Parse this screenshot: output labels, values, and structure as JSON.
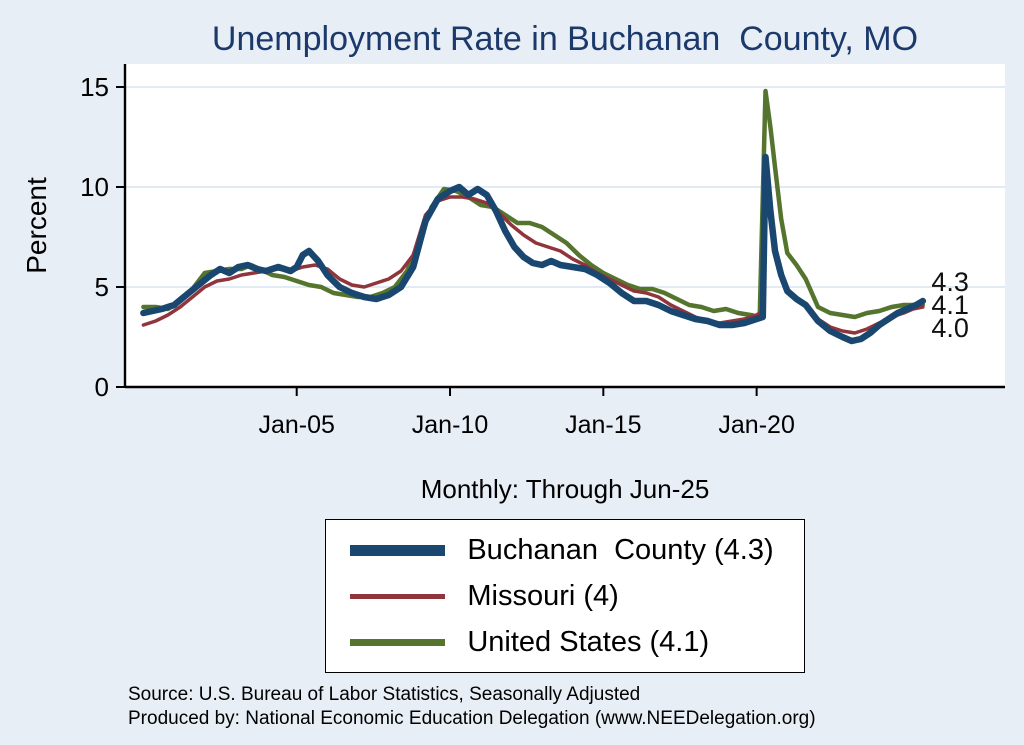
{
  "title": "Unemployment Rate in Buchanan  County, MO",
  "subtitle": "Monthly: Through Jun-25",
  "notes": {
    "line1": "Source: U.S. Bureau of Labor Statistics, Seasonally Adjusted",
    "line2": "Produced by: National Economic Education Delegation (www.NEEDelegation.org)"
  },
  "colors": {
    "background": "#e8eef6",
    "plot_bg": "#ffffff",
    "title": "#1b3a6b",
    "axis": "#000000",
    "grid": "#d9e4f0",
    "text": "#000000",
    "navy": "#1a476f",
    "maroon": "#90353b",
    "forest_green": "#55752f"
  },
  "legend": {
    "items": [
      {
        "label": "Buchanan  County (4.3)",
        "color": "#1a476f",
        "height": 11
      },
      {
        "label": "Missouri (4)",
        "color": "#90353b",
        "height": 5
      },
      {
        "label": "United States (4.1)",
        "color": "#55752f",
        "height": 7
      }
    ]
  },
  "chart_data": {
    "type": "line",
    "title": "Unemployment Rate in Buchanan  County, MO",
    "subtitle": "Monthly: Through Jun-25",
    "xlabel": "",
    "ylabel": "Percent",
    "grid": true,
    "legend_position": "bottom-center",
    "xlim": [
      1999.4,
      2028.1
    ],
    "ylim": [
      0,
      16
    ],
    "yticks": [
      0,
      5,
      10,
      15
    ],
    "xticks": [
      {
        "value": 2005,
        "label": "Jan-05"
      },
      {
        "value": 2010,
        "label": "Jan-10"
      },
      {
        "value": 2015,
        "label": "Jan-15"
      },
      {
        "value": 2020,
        "label": "Jan-20"
      }
    ],
    "end_label_x": 2025.7,
    "draw_order": [
      2,
      1,
      0
    ],
    "series": [
      {
        "id": "buchanan-county",
        "name": "Buchanan County",
        "color": "#1a476f",
        "width": 6.5,
        "end_label": "4.3",
        "end_label_y": 5.25,
        "points": [
          [
            2000.0,
            3.7
          ],
          [
            2000.3,
            3.8
          ],
          [
            2000.6,
            3.9
          ],
          [
            2001.0,
            4.1
          ],
          [
            2001.4,
            4.6
          ],
          [
            2001.8,
            5.1
          ],
          [
            2002.2,
            5.6
          ],
          [
            2002.5,
            5.9
          ],
          [
            2002.8,
            5.7
          ],
          [
            2003.1,
            6.0
          ],
          [
            2003.4,
            6.1
          ],
          [
            2003.7,
            5.9
          ],
          [
            2004.0,
            5.8
          ],
          [
            2004.4,
            6.0
          ],
          [
            2004.8,
            5.8
          ],
          [
            2005.0,
            6.0
          ],
          [
            2005.2,
            6.6
          ],
          [
            2005.4,
            6.8
          ],
          [
            2005.7,
            6.3
          ],
          [
            2006.0,
            5.6
          ],
          [
            2006.4,
            5.0
          ],
          [
            2006.8,
            4.7
          ],
          [
            2007.2,
            4.5
          ],
          [
            2007.6,
            4.4
          ],
          [
            2008.0,
            4.6
          ],
          [
            2008.4,
            5.0
          ],
          [
            2008.8,
            6.0
          ],
          [
            2009.2,
            8.3
          ],
          [
            2009.6,
            9.4
          ],
          [
            2010.0,
            9.8
          ],
          [
            2010.3,
            10.0
          ],
          [
            2010.6,
            9.6
          ],
          [
            2010.9,
            9.9
          ],
          [
            2011.2,
            9.6
          ],
          [
            2011.5,
            8.8
          ],
          [
            2011.8,
            7.8
          ],
          [
            2012.1,
            7.0
          ],
          [
            2012.4,
            6.5
          ],
          [
            2012.7,
            6.2
          ],
          [
            2013.0,
            6.1
          ],
          [
            2013.3,
            6.3
          ],
          [
            2013.6,
            6.1
          ],
          [
            2014.0,
            6.0
          ],
          [
            2014.4,
            5.9
          ],
          [
            2014.8,
            5.6
          ],
          [
            2015.2,
            5.2
          ],
          [
            2015.6,
            4.7
          ],
          [
            2016.0,
            4.3
          ],
          [
            2016.4,
            4.3
          ],
          [
            2016.8,
            4.1
          ],
          [
            2017.2,
            3.8
          ],
          [
            2017.6,
            3.6
          ],
          [
            2018.0,
            3.4
          ],
          [
            2018.4,
            3.3
          ],
          [
            2018.8,
            3.1
          ],
          [
            2019.2,
            3.1
          ],
          [
            2019.6,
            3.2
          ],
          [
            2020.0,
            3.4
          ],
          [
            2020.2,
            3.5
          ],
          [
            2020.29,
            11.5
          ],
          [
            2020.45,
            8.8
          ],
          [
            2020.6,
            6.8
          ],
          [
            2020.8,
            5.6
          ],
          [
            2021.0,
            4.8
          ],
          [
            2021.3,
            4.4
          ],
          [
            2021.6,
            4.1
          ],
          [
            2022.0,
            3.3
          ],
          [
            2022.4,
            2.8
          ],
          [
            2022.8,
            2.5
          ],
          [
            2023.1,
            2.3
          ],
          [
            2023.4,
            2.4
          ],
          [
            2023.7,
            2.7
          ],
          [
            2024.0,
            3.1
          ],
          [
            2024.3,
            3.4
          ],
          [
            2024.6,
            3.7
          ],
          [
            2024.9,
            3.9
          ],
          [
            2025.2,
            4.1
          ],
          [
            2025.42,
            4.3
          ]
        ]
      },
      {
        "id": "missouri",
        "name": "Missouri",
        "color": "#90353b",
        "width": 3.5,
        "end_label": "4.0",
        "end_label_y": 2.95,
        "points": [
          [
            2000.0,
            3.1
          ],
          [
            2000.4,
            3.3
          ],
          [
            2000.8,
            3.6
          ],
          [
            2001.2,
            4.0
          ],
          [
            2001.6,
            4.5
          ],
          [
            2002.0,
            5.0
          ],
          [
            2002.4,
            5.3
          ],
          [
            2002.8,
            5.4
          ],
          [
            2003.2,
            5.6
          ],
          [
            2003.6,
            5.7
          ],
          [
            2004.0,
            5.8
          ],
          [
            2004.4,
            5.9
          ],
          [
            2004.8,
            5.8
          ],
          [
            2005.2,
            6.0
          ],
          [
            2005.6,
            6.1
          ],
          [
            2006.0,
            5.9
          ],
          [
            2006.4,
            5.4
          ],
          [
            2006.8,
            5.1
          ],
          [
            2007.2,
            5.0
          ],
          [
            2007.6,
            5.2
          ],
          [
            2008.0,
            5.4
          ],
          [
            2008.4,
            5.8
          ],
          [
            2008.8,
            6.6
          ],
          [
            2009.2,
            8.6
          ],
          [
            2009.6,
            9.3
          ],
          [
            2010.0,
            9.5
          ],
          [
            2010.4,
            9.5
          ],
          [
            2010.8,
            9.4
          ],
          [
            2011.2,
            9.2
          ],
          [
            2011.6,
            8.7
          ],
          [
            2012.0,
            8.1
          ],
          [
            2012.4,
            7.6
          ],
          [
            2012.8,
            7.2
          ],
          [
            2013.2,
            7.0
          ],
          [
            2013.6,
            6.8
          ],
          [
            2014.0,
            6.4
          ],
          [
            2014.4,
            6.1
          ],
          [
            2014.8,
            5.7
          ],
          [
            2015.2,
            5.4
          ],
          [
            2015.6,
            5.1
          ],
          [
            2016.0,
            4.8
          ],
          [
            2016.4,
            4.7
          ],
          [
            2016.8,
            4.5
          ],
          [
            2017.2,
            4.1
          ],
          [
            2017.6,
            3.8
          ],
          [
            2018.0,
            3.5
          ],
          [
            2018.4,
            3.3
          ],
          [
            2018.8,
            3.2
          ],
          [
            2019.2,
            3.3
          ],
          [
            2019.6,
            3.4
          ],
          [
            2020.0,
            3.6
          ],
          [
            2020.2,
            3.8
          ],
          [
            2020.29,
            10.4
          ],
          [
            2020.45,
            8.6
          ],
          [
            2020.6,
            6.9
          ],
          [
            2020.8,
            5.6
          ],
          [
            2021.0,
            4.7
          ],
          [
            2021.3,
            4.4
          ],
          [
            2021.6,
            4.1
          ],
          [
            2022.0,
            3.4
          ],
          [
            2022.4,
            3.0
          ],
          [
            2022.8,
            2.8
          ],
          [
            2023.2,
            2.7
          ],
          [
            2023.6,
            2.9
          ],
          [
            2024.0,
            3.2
          ],
          [
            2024.4,
            3.5
          ],
          [
            2024.8,
            3.7
          ],
          [
            2025.1,
            3.9
          ],
          [
            2025.42,
            4.0
          ]
        ]
      },
      {
        "id": "united-states",
        "name": "United States",
        "color": "#55752f",
        "width": 4.5,
        "end_label": "4.1",
        "end_label_y": 4.1,
        "points": [
          [
            2000.0,
            4.0
          ],
          [
            2000.4,
            4.0
          ],
          [
            2000.8,
            3.9
          ],
          [
            2001.2,
            4.3
          ],
          [
            2001.6,
            4.9
          ],
          [
            2002.0,
            5.7
          ],
          [
            2002.4,
            5.8
          ],
          [
            2002.8,
            5.9
          ],
          [
            2003.2,
            5.9
          ],
          [
            2003.5,
            6.1
          ],
          [
            2003.8,
            5.9
          ],
          [
            2004.2,
            5.6
          ],
          [
            2004.6,
            5.5
          ],
          [
            2005.0,
            5.3
          ],
          [
            2005.4,
            5.1
          ],
          [
            2005.8,
            5.0
          ],
          [
            2006.2,
            4.7
          ],
          [
            2006.6,
            4.6
          ],
          [
            2007.0,
            4.5
          ],
          [
            2007.4,
            4.5
          ],
          [
            2007.8,
            4.7
          ],
          [
            2008.2,
            5.0
          ],
          [
            2008.6,
            5.8
          ],
          [
            2009.0,
            7.3
          ],
          [
            2009.4,
            9.0
          ],
          [
            2009.8,
            9.9
          ],
          [
            2010.2,
            9.8
          ],
          [
            2010.6,
            9.5
          ],
          [
            2011.0,
            9.1
          ],
          [
            2011.4,
            9.0
          ],
          [
            2011.8,
            8.6
          ],
          [
            2012.2,
            8.2
          ],
          [
            2012.6,
            8.2
          ],
          [
            2013.0,
            8.0
          ],
          [
            2013.4,
            7.6
          ],
          [
            2013.8,
            7.2
          ],
          [
            2014.2,
            6.6
          ],
          [
            2014.6,
            6.1
          ],
          [
            2015.0,
            5.7
          ],
          [
            2015.4,
            5.4
          ],
          [
            2015.8,
            5.1
          ],
          [
            2016.2,
            4.9
          ],
          [
            2016.6,
            4.9
          ],
          [
            2017.0,
            4.7
          ],
          [
            2017.4,
            4.4
          ],
          [
            2017.8,
            4.1
          ],
          [
            2018.2,
            4.0
          ],
          [
            2018.6,
            3.8
          ],
          [
            2019.0,
            3.9
          ],
          [
            2019.4,
            3.7
          ],
          [
            2019.8,
            3.6
          ],
          [
            2020.1,
            3.5
          ],
          [
            2020.29,
            14.8
          ],
          [
            2020.45,
            13.0
          ],
          [
            2020.6,
            11.0
          ],
          [
            2020.8,
            8.4
          ],
          [
            2021.0,
            6.7
          ],
          [
            2021.3,
            6.1
          ],
          [
            2021.6,
            5.4
          ],
          [
            2022.0,
            4.0
          ],
          [
            2022.4,
            3.7
          ],
          [
            2022.8,
            3.6
          ],
          [
            2023.2,
            3.5
          ],
          [
            2023.6,
            3.7
          ],
          [
            2024.0,
            3.8
          ],
          [
            2024.4,
            4.0
          ],
          [
            2024.8,
            4.1
          ],
          [
            2025.1,
            4.1
          ],
          [
            2025.42,
            4.1
          ]
        ]
      }
    ]
  }
}
